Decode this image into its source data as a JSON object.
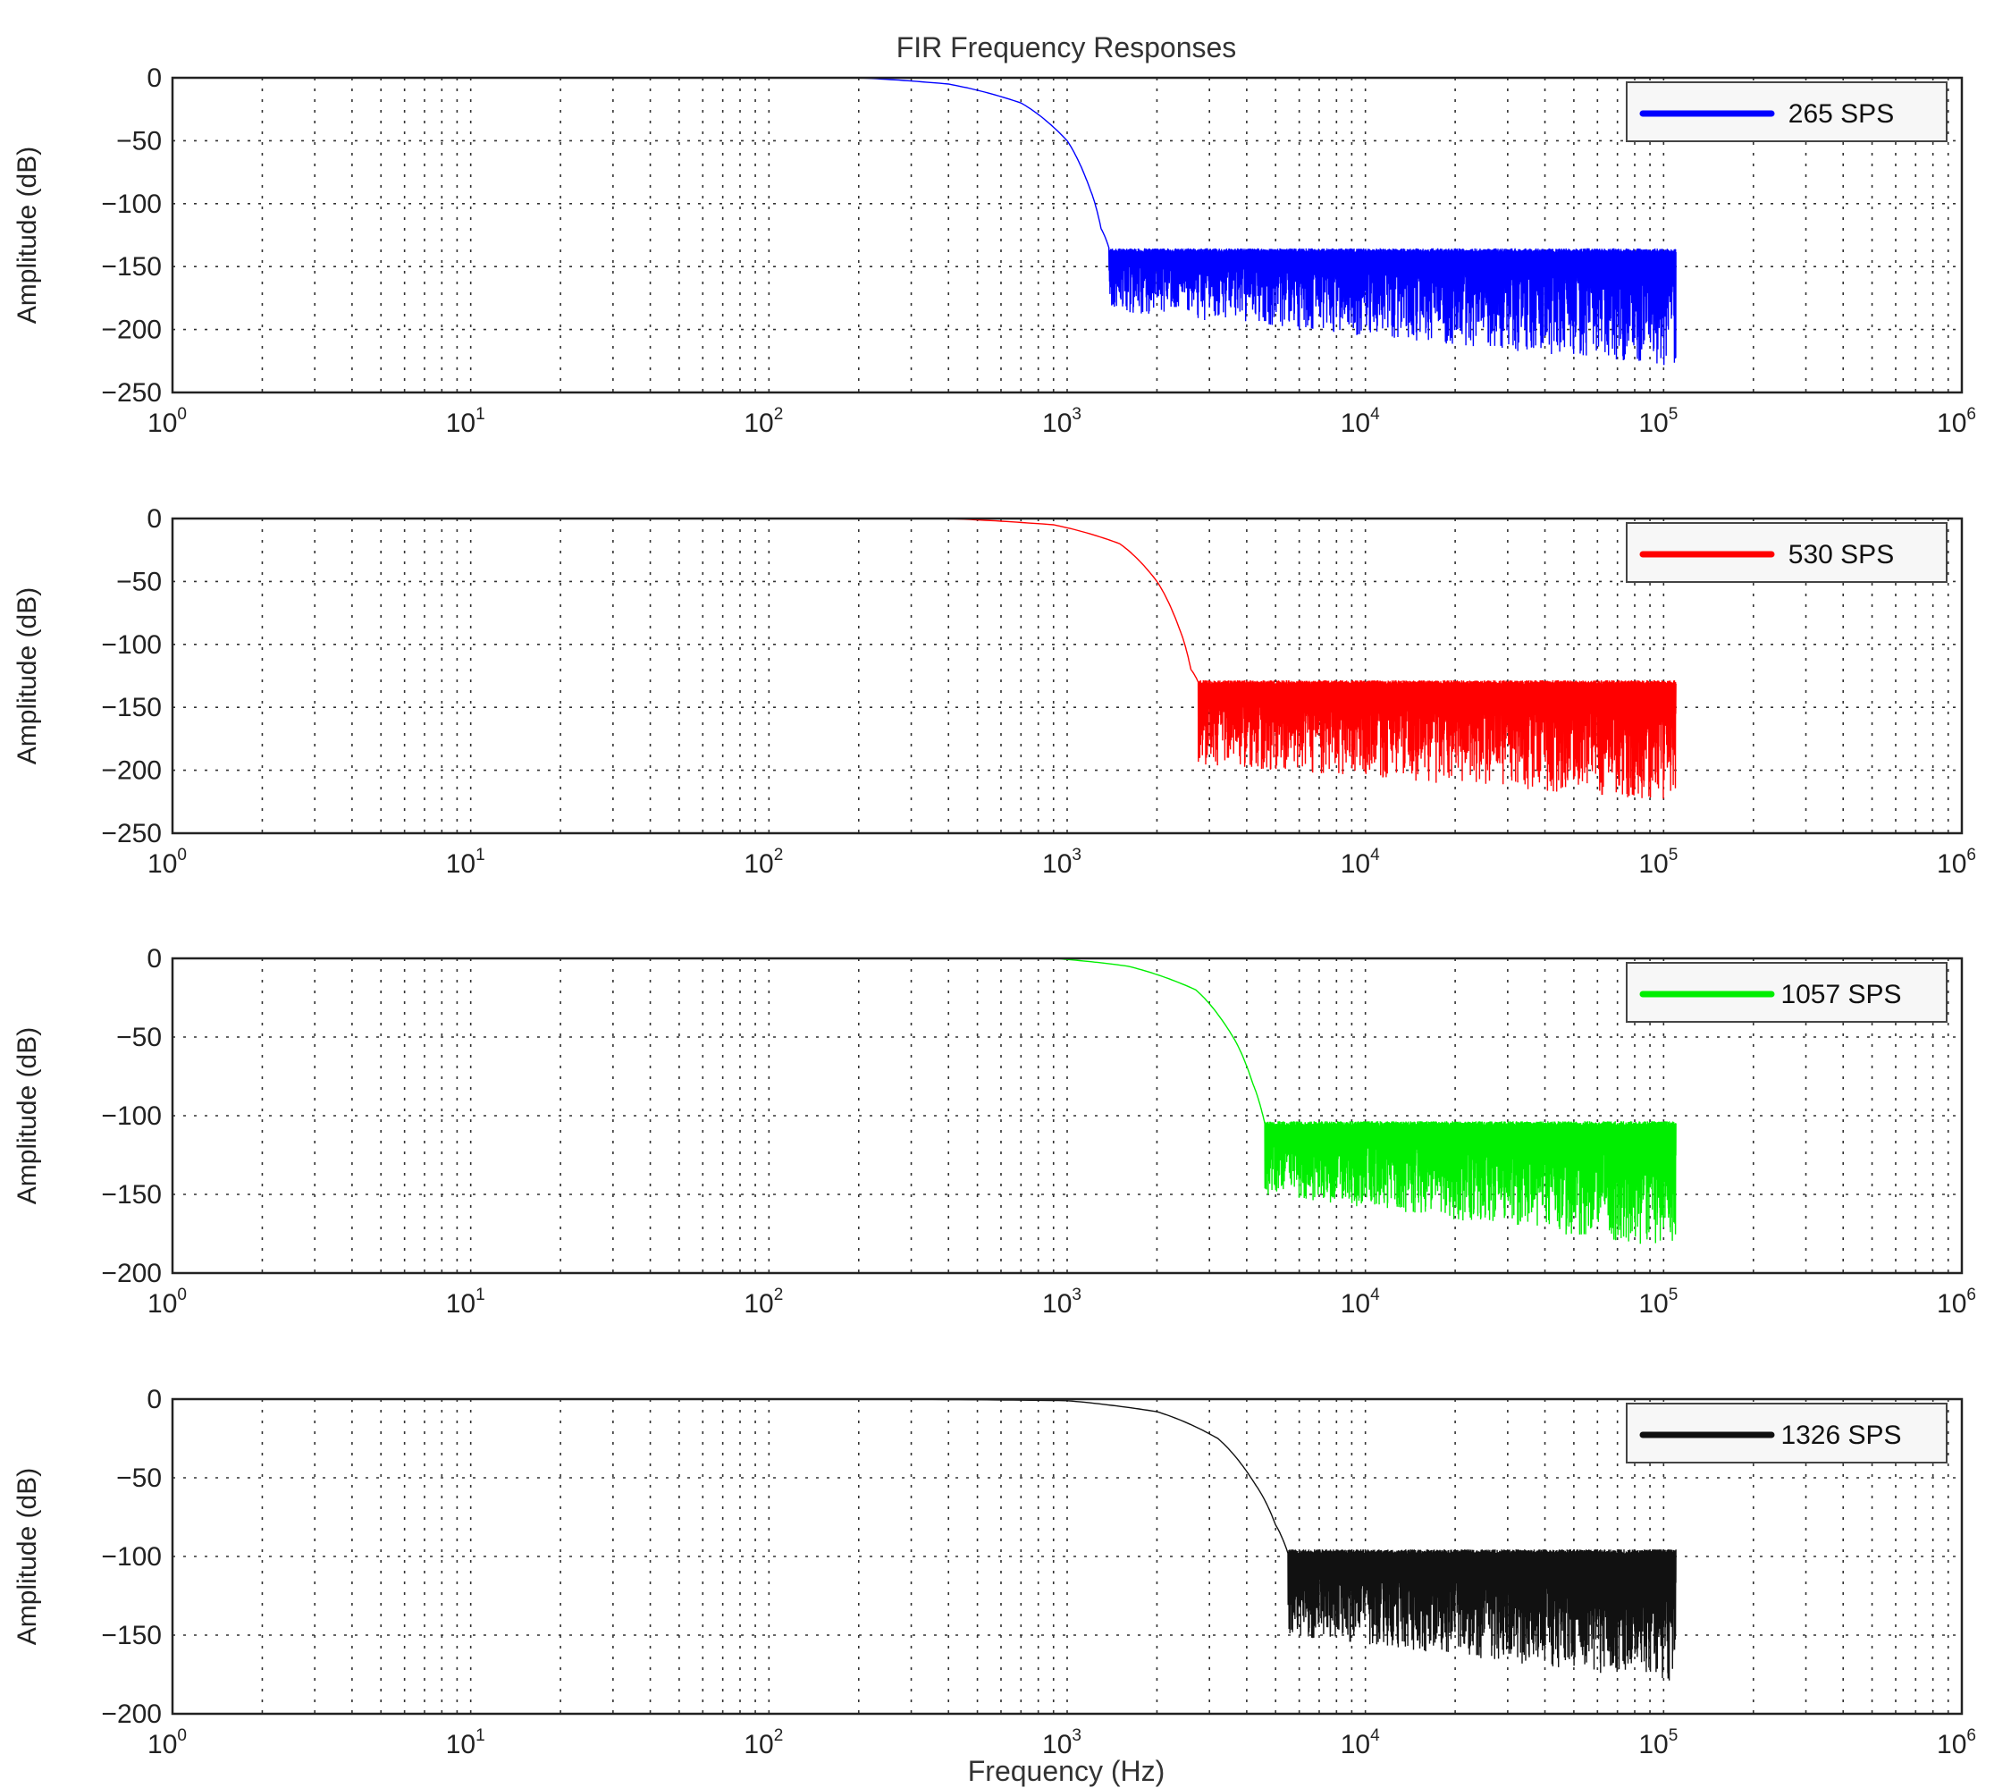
{
  "title": "FIR Frequency Responses",
  "xlabel": "Frequency (Hz)",
  "chart_data": [
    {
      "type": "line",
      "xscale": "log",
      "xlim": [
        1,
        1000000
      ],
      "xticks": [
        1,
        10,
        100,
        1000,
        10000,
        100000,
        1000000
      ],
      "ylim": [
        -250,
        0
      ],
      "yticks": [
        0,
        -50,
        -100,
        -150,
        -200,
        -250
      ],
      "ylabel": "Amplitude (dB)",
      "grid": true,
      "legend": "top-right",
      "series": [
        {
          "name": "265 SPS",
          "color": "#0000ff",
          "passband": [
            [
              3,
              0
            ],
            [
              200,
              0
            ],
            [
              400,
              -5
            ],
            [
              700,
              -20
            ],
            [
              1000,
              -50
            ],
            [
              1200,
              -90
            ],
            [
              1300,
              -120
            ],
            [
              1380,
              -135
            ]
          ],
          "stopband": {
            "from": 1380,
            "to": 110000,
            "ceiling": -137,
            "floor_start": -185,
            "floor_end": -230
          }
        }
      ]
    },
    {
      "type": "line",
      "xscale": "log",
      "xlim": [
        1,
        1000000
      ],
      "xticks": [
        1,
        10,
        100,
        1000,
        10000,
        100000,
        1000000
      ],
      "ylim": [
        -250,
        0
      ],
      "yticks": [
        0,
        -50,
        -100,
        -150,
        -200,
        -250
      ],
      "ylabel": "Amplitude (dB)",
      "grid": true,
      "legend": "top-right",
      "series": [
        {
          "name": "530 SPS",
          "color": "#ff0000",
          "passband": [
            [
              3,
              0
            ],
            [
              400,
              0
            ],
            [
              900,
              -5
            ],
            [
              1500,
              -20
            ],
            [
              2000,
              -50
            ],
            [
              2400,
              -90
            ],
            [
              2600,
              -120
            ],
            [
              2750,
              -130
            ]
          ],
          "stopband": {
            "from": 2750,
            "to": 110000,
            "ceiling": -130,
            "floor_start": -195,
            "floor_end": -225
          }
        }
      ]
    },
    {
      "type": "line",
      "xscale": "log",
      "xlim": [
        1,
        1000000
      ],
      "xticks": [
        1,
        10,
        100,
        1000,
        10000,
        100000,
        1000000
      ],
      "ylim": [
        -200,
        0
      ],
      "yticks": [
        0,
        -50,
        -100,
        -150,
        -200
      ],
      "ylabel": "Amplitude (dB)",
      "grid": true,
      "legend": "top-right",
      "series": [
        {
          "name": "1057 SPS",
          "color": "#00ee00",
          "passband": [
            [
              3,
              0
            ],
            [
              900,
              0
            ],
            [
              1600,
              -5
            ],
            [
              2700,
              -20
            ],
            [
              3600,
              -50
            ],
            [
              4200,
              -80
            ],
            [
              4600,
              -105
            ]
          ],
          "stopband": {
            "from": 4600,
            "to": 110000,
            "ceiling": -105,
            "floor_start": -150,
            "floor_end": -185
          }
        }
      ]
    },
    {
      "type": "line",
      "xscale": "log",
      "xlim": [
        1,
        1000000
      ],
      "xticks": [
        1,
        10,
        100,
        1000,
        10000,
        100000,
        1000000
      ],
      "ylim": [
        -200,
        0
      ],
      "yticks": [
        0,
        -50,
        -100,
        -150,
        -200
      ],
      "ylabel": "Amplitude (dB)",
      "grid": true,
      "legend": "top-right",
      "series": [
        {
          "name": "1326 SPS",
          "color": "#111111",
          "passband": [
            [
              250,
              0
            ],
            [
              1000,
              -1
            ],
            [
              2000,
              -8
            ],
            [
              3200,
              -25
            ],
            [
              4300,
              -55
            ],
            [
              5000,
              -80
            ],
            [
              5500,
              -98
            ]
          ],
          "stopband": {
            "from": 5500,
            "to": 110000,
            "ceiling": -97,
            "floor_start": -150,
            "floor_end": -180
          }
        }
      ]
    }
  ]
}
